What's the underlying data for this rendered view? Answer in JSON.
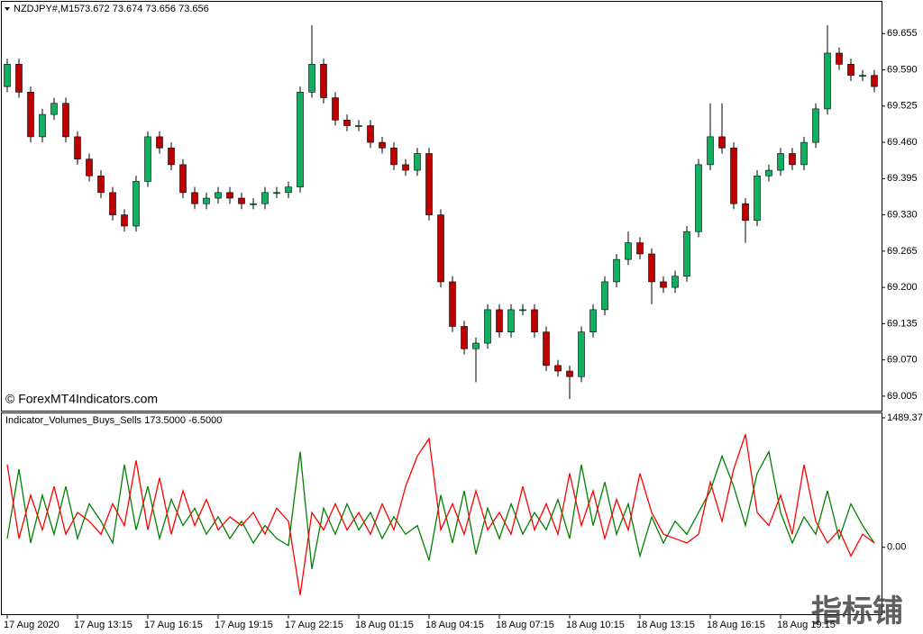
{
  "chart_data": [
    {
      "type": "candlestick",
      "title": "NZDJPY#,M15",
      "subtitle": "73.672 73.674 73.656 73.656",
      "annotation": "© ForexMT4Indicators.com",
      "up_color": "#10b060",
      "down_color": "#c00000",
      "wick_color": "#000000",
      "grid": false,
      "ylim": [
        68.979,
        69.712
      ],
      "yticks": [
        69.655,
        {
          "value": 69.59,
          "label": "69.590"
        },
        69.525,
        {
          "value": 69.46,
          "label": "69.460"
        },
        69.395,
        {
          "value": 69.33,
          "label": "69.330"
        },
        69.265,
        {
          "value": 69.2,
          "label": "69.200"
        },
        69.135,
        {
          "value": 69.07,
          "label": "69.070"
        },
        69.005
      ],
      "open": [
        69.56,
        69.6,
        69.55,
        69.47,
        69.51,
        69.53,
        69.47,
        69.43,
        69.4,
        69.37,
        69.33,
        69.31,
        69.39,
        69.47,
        69.45,
        69.42,
        69.37,
        69.35,
        69.36,
        69.37,
        69.36,
        69.35,
        69.35,
        69.37,
        69.37,
        69.38,
        69.55,
        69.6,
        69.54,
        69.5,
        69.49,
        69.49,
        69.46,
        69.45,
        69.42,
        69.41,
        69.44,
        69.33,
        69.21,
        69.13,
        69.09,
        69.1,
        69.16,
        69.12,
        69.16,
        69.16,
        69.12,
        69.06,
        69.05,
        69.04,
        69.12,
        69.16,
        69.21,
        69.25,
        69.28,
        69.26,
        69.21,
        69.2,
        69.22,
        69.3,
        69.42,
        69.47,
        69.45,
        69.35,
        69.32,
        69.4,
        69.41,
        69.44,
        69.42,
        69.46,
        69.52,
        69.62,
        69.6,
        69.58,
        69.58
      ],
      "high": [
        69.61,
        69.61,
        69.56,
        69.52,
        69.54,
        69.54,
        69.48,
        69.44,
        69.41,
        69.38,
        69.34,
        69.4,
        69.48,
        69.48,
        69.46,
        69.43,
        69.38,
        69.37,
        69.38,
        69.38,
        69.37,
        69.36,
        69.38,
        69.38,
        69.39,
        69.56,
        69.67,
        69.61,
        69.55,
        69.51,
        69.5,
        69.5,
        69.47,
        69.46,
        69.43,
        69.45,
        69.45,
        69.34,
        69.22,
        69.14,
        69.11,
        69.17,
        69.17,
        69.17,
        69.17,
        69.17,
        69.13,
        69.07,
        69.06,
        69.13,
        69.17,
        69.22,
        69.26,
        69.3,
        69.29,
        69.27,
        69.22,
        69.23,
        69.31,
        69.43,
        69.53,
        69.53,
        69.46,
        69.36,
        69.41,
        69.42,
        69.45,
        69.45,
        69.47,
        69.53,
        69.67,
        69.63,
        69.61,
        69.59,
        69.59
      ],
      "low": [
        69.55,
        69.54,
        69.46,
        69.46,
        69.5,
        69.46,
        69.42,
        69.39,
        69.36,
        69.32,
        69.3,
        69.3,
        69.38,
        69.44,
        69.41,
        69.36,
        69.34,
        69.34,
        69.35,
        69.35,
        69.34,
        69.34,
        69.34,
        69.36,
        69.36,
        69.37,
        69.54,
        69.53,
        69.49,
        69.48,
        69.48,
        69.45,
        69.44,
        69.41,
        69.4,
        69.4,
        69.32,
        69.2,
        69.12,
        69.08,
        69.03,
        69.09,
        69.11,
        69.11,
        69.15,
        69.11,
        69.05,
        69.04,
        69.0,
        69.03,
        69.11,
        69.15,
        69.2,
        69.24,
        69.25,
        69.17,
        69.19,
        69.19,
        69.21,
        69.29,
        69.41,
        69.44,
        69.34,
        69.28,
        69.31,
        69.39,
        69.4,
        69.41,
        69.41,
        69.45,
        69.51,
        69.59,
        69.57,
        69.57,
        69.55
      ],
      "close": [
        69.6,
        69.55,
        69.47,
        69.51,
        69.53,
        69.47,
        69.43,
        69.4,
        69.37,
        69.33,
        69.31,
        69.39,
        69.47,
        69.45,
        69.42,
        69.37,
        69.35,
        69.36,
        69.37,
        69.36,
        69.35,
        69.35,
        69.37,
        69.37,
        69.38,
        69.55,
        69.6,
        69.54,
        69.5,
        69.49,
        69.49,
        69.46,
        69.45,
        69.42,
        69.41,
        69.44,
        69.33,
        69.21,
        69.13,
        69.09,
        69.1,
        69.16,
        69.12,
        69.16,
        69.16,
        69.12,
        69.06,
        69.05,
        69.04,
        69.12,
        69.16,
        69.21,
        69.25,
        69.28,
        69.26,
        69.21,
        69.2,
        69.22,
        69.3,
        69.42,
        69.47,
        69.45,
        69.35,
        69.32,
        69.4,
        69.41,
        69.44,
        69.42,
        69.46,
        69.52,
        69.62,
        69.6,
        69.58,
        69.58,
        69.56
      ]
    },
    {
      "type": "line",
      "title": "Indicator_Volumes_Buys_Sells 173.5000 -6.5000",
      "grid": false,
      "ylim": [
        -770,
        1541
      ],
      "yticks": [
        1489.375,
        {
          "value": 0,
          "label": "0.00"
        }
      ],
      "categories": [
        "17 Aug 2020",
        null,
        null,
        null,
        null,
        null,
        "17 Aug 13:15",
        null,
        null,
        null,
        null,
        null,
        "17 Aug 16:15",
        null,
        null,
        null,
        null,
        null,
        "17 Aug 19:15",
        null,
        null,
        null,
        null,
        null,
        "17 Aug 22:15",
        null,
        null,
        null,
        null,
        null,
        "18 Aug 01:15",
        null,
        null,
        null,
        null,
        null,
        "18 Aug 04:15",
        null,
        null,
        null,
        null,
        null,
        "18 Aug 07:15",
        null,
        null,
        null,
        null,
        null,
        "18 Aug 10:15",
        null,
        null,
        null,
        null,
        null,
        "18 Aug 13:15",
        null,
        null,
        null,
        null,
        null,
        "18 Aug 16:15",
        null,
        null,
        null,
        null,
        null,
        "18 Aug 19:15",
        null,
        null,
        null,
        null,
        null,
        null,
        null,
        null
      ],
      "series": [
        {
          "color": "#008000",
          "values": [
            100,
            900,
            50,
            600,
            150,
            700,
            100,
            500,
            300,
            50,
            950,
            200,
            700,
            100,
            550,
            250,
            450,
            150,
            350,
            100,
            300,
            50,
            250,
            100,
            20,
            1100,
            -250,
            450,
            150,
            500,
            200,
            400,
            100,
            350,
            150,
            250,
            -150,
            600,
            50,
            650,
            -80,
            450,
            100,
            500,
            150,
            400,
            200,
            550,
            100,
            950,
            250,
            750,
            150,
            500,
            -100,
            350,
            50,
            300,
            150,
            400,
            650,
            1050,
            700,
            250,
            850,
            1100,
            400,
            50,
            350,
            150,
            650,
            100,
            500,
            250,
            50
          ]
        },
        {
          "color": "#ff0000",
          "values": [
            950,
            100,
            600,
            200,
            700,
            150,
            400,
            300,
            150,
            500,
            250,
            1000,
            200,
            800,
            150,
            650,
            250,
            550,
            200,
            350,
            250,
            400,
            150,
            450,
            300,
            -550,
            400,
            200,
            500,
            200,
            400,
            150,
            500,
            200,
            700,
            1050,
            1250,
            200,
            500,
            150,
            650,
            200,
            400,
            150,
            700,
            200,
            500,
            150,
            850,
            250,
            650,
            100,
            550,
            200,
            850,
            400,
            150,
            100,
            50,
            150,
            750,
            300,
            900,
            1300,
            400,
            250,
            600,
            150,
            950,
            300,
            50,
            200,
            -100,
            150,
            50
          ]
        }
      ]
    }
  ],
  "watermark": "指标铺"
}
